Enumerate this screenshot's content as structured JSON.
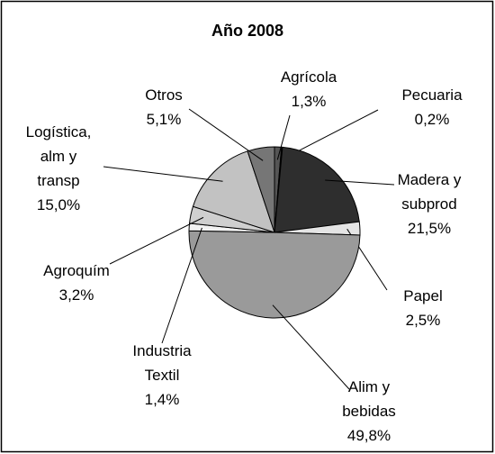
{
  "chart_data": {
    "type": "pie",
    "title": "Año 2008",
    "categories": [
      "Agrícola",
      "Pecuaria",
      "Madera y subprod",
      "Papel",
      "Alim y bebidas",
      "Industria Textil",
      "Agroquím",
      "Logística, alm y transp",
      "Otros"
    ],
    "values": [
      1.3,
      0.2,
      21.5,
      2.5,
      49.8,
      1.4,
      3.2,
      15.0,
      5.1
    ],
    "value_labels": [
      "1,3%",
      "0,2%",
      "21,5%",
      "2,5%",
      "49,8%",
      "1,4%",
      "3,2%",
      "15,0%",
      "5,1%"
    ],
    "colors": [
      "#555555",
      "#111111",
      "#2e2e2e",
      "#e4e4e4",
      "#9a9a9a",
      "#f2f2f2",
      "#cfcfcf",
      "#c2c2c2",
      "#767676"
    ]
  }
}
